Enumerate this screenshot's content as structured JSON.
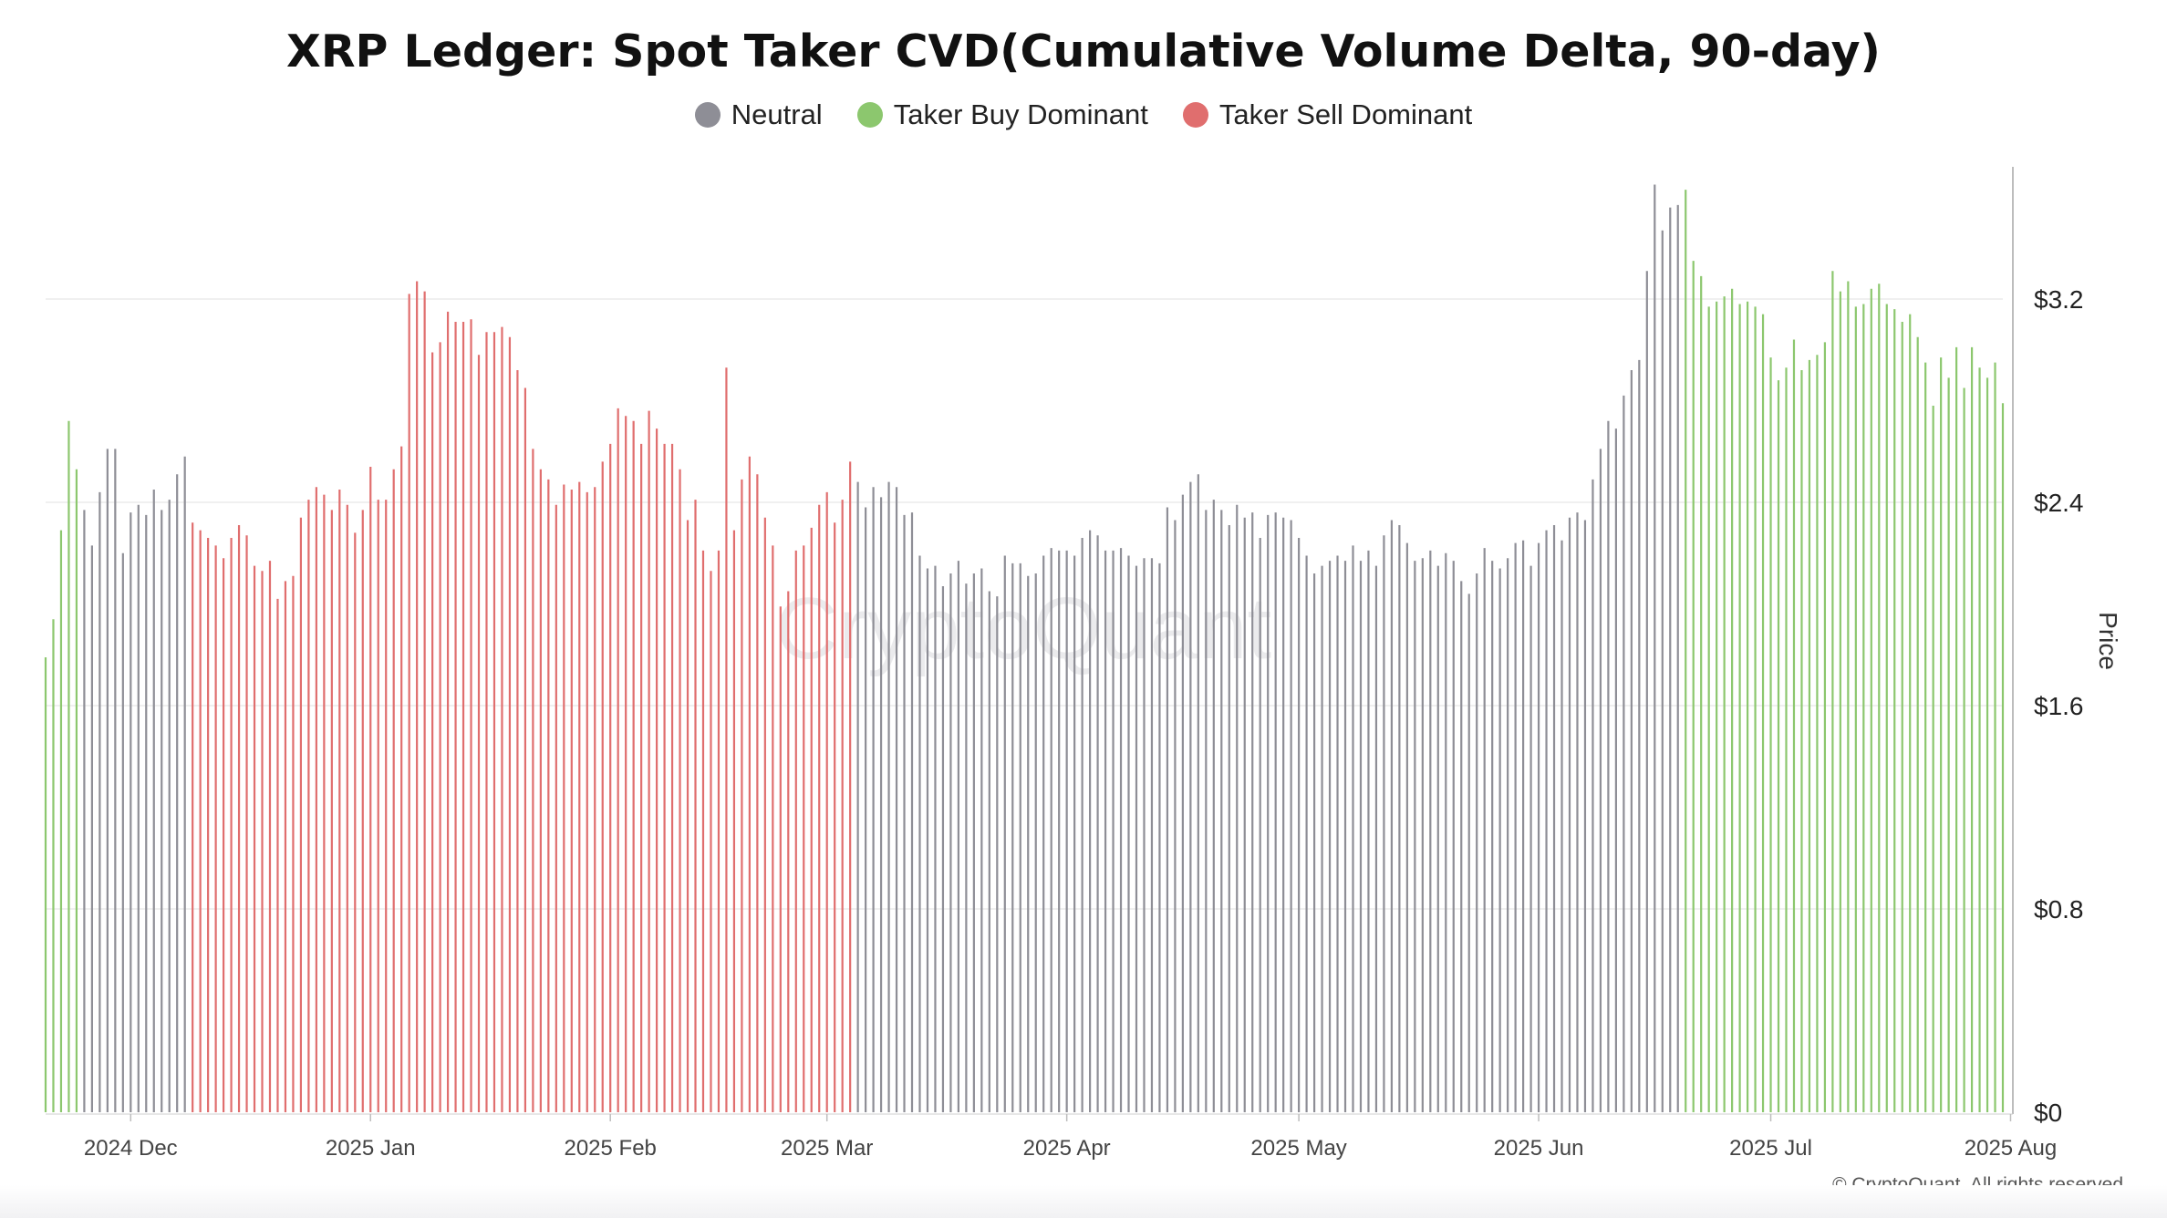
{
  "title": "XRP Ledger: Spot Taker CVD(Cumulative Volume Delta, 90-day)",
  "legend": [
    {
      "label": "Neutral",
      "color": "#8e8e96",
      "key": "neutral"
    },
    {
      "label": "Taker Buy Dominant",
      "color": "#8cc76e",
      "key": "buy"
    },
    {
      "label": "Taker Sell Dominant",
      "color": "#e06e6e",
      "key": "sell"
    }
  ],
  "watermark": "CryptoQuant",
  "footer": "© CryptoQuant. All rights reserved",
  "chart_data": {
    "type": "bar",
    "title": "XRP Ledger: Spot Taker CVD(Cumulative Volume Delta, 90-day)",
    "xlabel": "",
    "ylabel": "Price",
    "ylim": [
      0,
      3.72
    ],
    "yticks": [
      "$0",
      "$0.8",
      "$1.6",
      "$2.4",
      "$3.2"
    ],
    "ytick_values": [
      0,
      0.8,
      1.6,
      2.4,
      3.2
    ],
    "xticks": [
      "2024 Dec",
      "2025 Jan",
      "2025 Feb",
      "2025 Mar",
      "2025 Apr",
      "2025 May",
      "2025 Jun",
      "2025 Jul",
      "2025 Aug"
    ],
    "xtick_dates": [
      "2024-12-01",
      "2025-01-01",
      "2025-02-01",
      "2025-03-01",
      "2025-04-01",
      "2025-05-01",
      "2025-06-01",
      "2025-07-01",
      "2025-08-01"
    ],
    "start_date": "2024-11-20",
    "grid": true,
    "legend_position": "top",
    "colors": {
      "N": "#8e8e96",
      "B": "#8cc76e",
      "S": "#e06e6e"
    },
    "series": [
      {
        "name": "Price",
        "values": [
          1.79,
          1.94,
          2.29,
          2.72,
          2.53,
          2.37,
          2.23,
          2.44,
          2.61,
          2.61,
          2.2,
          2.36,
          2.39,
          2.35,
          2.45,
          2.37,
          2.41,
          2.51,
          2.58,
          2.32,
          2.29,
          2.26,
          2.23,
          2.18,
          2.26,
          2.31,
          2.27,
          2.15,
          2.13,
          2.17,
          2.02,
          2.09,
          2.11,
          2.34,
          2.41,
          2.46,
          2.43,
          2.37,
          2.45,
          2.39,
          2.28,
          2.37,
          2.54,
          2.41,
          2.41,
          2.53,
          2.62,
          3.22,
          3.27,
          3.23,
          2.99,
          3.03,
          3.15,
          3.11,
          3.11,
          3.12,
          2.98,
          3.07,
          3.07,
          3.09,
          3.05,
          2.92,
          2.85,
          2.61,
          2.53,
          2.49,
          2.39,
          2.47,
          2.45,
          2.48,
          2.44,
          2.46,
          2.56,
          2.63,
          2.77,
          2.74,
          2.72,
          2.63,
          2.76,
          2.69,
          2.63,
          2.63,
          2.53,
          2.33,
          2.41,
          2.21,
          2.13,
          2.21,
          2.93,
          2.29,
          2.49,
          2.58,
          2.51,
          2.34,
          2.23,
          1.99,
          2.05,
          2.21,
          2.23,
          2.3,
          2.39,
          2.44,
          2.32,
          2.41,
          2.56,
          2.48,
          2.38,
          2.46,
          2.42,
          2.48,
          2.46,
          2.35,
          2.36,
          2.19,
          2.14,
          2.15,
          2.07,
          2.12,
          2.17,
          2.08,
          2.12,
          2.14,
          2.05,
          2.03,
          2.19,
          2.16,
          2.16,
          2.11,
          2.12,
          2.19,
          2.22,
          2.21,
          2.21,
          2.19,
          2.26,
          2.29,
          2.27,
          2.21,
          2.21,
          2.22,
          2.19,
          2.15,
          2.18,
          2.18,
          2.16,
          2.38,
          2.33,
          2.43,
          2.48,
          2.51,
          2.37,
          2.41,
          2.37,
          2.31,
          2.39,
          2.34,
          2.36,
          2.26,
          2.35,
          2.36,
          2.34,
          2.33,
          2.26,
          2.19,
          2.12,
          2.15,
          2.17,
          2.19,
          2.17,
          2.23,
          2.17,
          2.21,
          2.15,
          2.27,
          2.33,
          2.31,
          2.24,
          2.17,
          2.18,
          2.21,
          2.15,
          2.2,
          2.17,
          2.09,
          2.04,
          2.12,
          2.22,
          2.17,
          2.14,
          2.18,
          2.24,
          2.25,
          2.15,
          2.24,
          2.29,
          2.31,
          2.25,
          2.34,
          2.36,
          2.33,
          2.49,
          2.61,
          2.72,
          2.69,
          2.82,
          2.92,
          2.96,
          3.31,
          3.65,
          3.47,
          3.56,
          3.57,
          3.63,
          3.35,
          3.29,
          3.17,
          3.19,
          3.21,
          3.24,
          3.18,
          3.19,
          3.17,
          3.14,
          2.97,
          2.88,
          2.93,
          3.04,
          2.92,
          2.96,
          2.98,
          3.03,
          3.31,
          3.23,
          3.27,
          3.17,
          3.18,
          3.24,
          3.26,
          3.18,
          3.16,
          3.11,
          3.14,
          3.05,
          2.95,
          2.78,
          2.97,
          2.89,
          3.01,
          2.85,
          3.01,
          2.93,
          2.89,
          2.95,
          2.79
        ],
        "dominance": "BBBBBNNNNNNNNNNNNNNSSSSSSSSSSSSSSSSSSSSSSSSSSSSSSSSSSSSSSSSSSSSSSSSSSSSSSSSSSSSSSSSSSSSSSSSSSSSSSSSSSSSSSNNNNNNNNNNNNNNNNNNNNNNNNNNNNNNNNNNNNNNNNNNNNNNNNNNNNNNNNNNNNNNNNNNNNNNNNNNNNNNNNNNNNNNNNNNNNNNNNNNNNNNNNNNNBBBBBBBBBBBBBBBBBBBBBBBBBBBBBBBBBBBBBBBBBBBBBBBBBSSSSSSSSSSSSSSSSSSSSSSSSSSSSSSSSSSSS"
      }
    ]
  }
}
